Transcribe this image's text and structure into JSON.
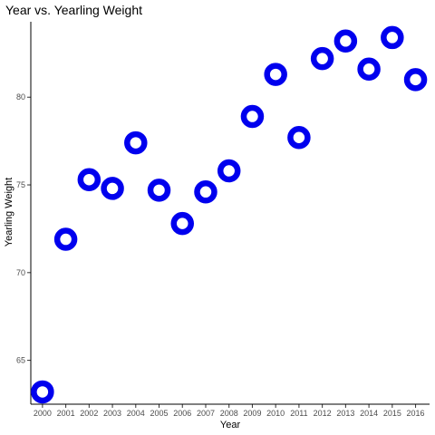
{
  "chart_data": {
    "type": "scatter",
    "title": "Year vs.  Yearling Weight",
    "xlabel": "Year",
    "ylabel": "Yearling Weight",
    "x": [
      2000,
      2001,
      2002,
      2003,
      2004,
      2005,
      2006,
      2007,
      2008,
      2009,
      2010,
      2011,
      2012,
      2013,
      2014,
      2015,
      2016
    ],
    "y": [
      63.2,
      71.9,
      75.3,
      74.8,
      77.4,
      74.7,
      72.8,
      74.6,
      75.8,
      78.9,
      81.3,
      77.7,
      82.2,
      83.2,
      81.6,
      83.4,
      81.0
    ],
    "x_ticks": [
      "2000",
      "2001",
      "2002",
      "2003",
      "2004",
      "2005",
      "2006",
      "2007",
      "2008",
      "2009",
      "2010",
      "2011",
      "2012",
      "2013",
      "2014",
      "2015",
      "2016"
    ],
    "y_ticks": [
      65,
      70,
      75,
      80
    ],
    "xlim": [
      1999.5,
      2016.6
    ],
    "ylim": [
      62.5,
      84.3
    ],
    "grid": false,
    "legend": "none",
    "point_color": "#0000ee",
    "point_fill": "#ffffff"
  }
}
